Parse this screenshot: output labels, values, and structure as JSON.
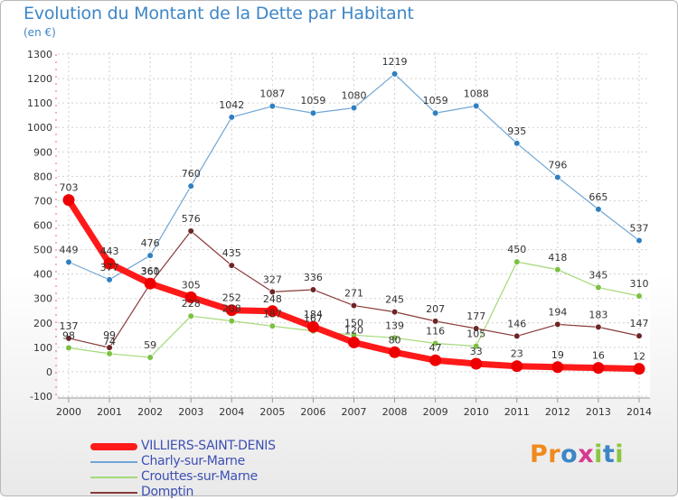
{
  "title": "Evolution du Montant de la Dette par Habitant",
  "subtitle": "(en €)",
  "logo": {
    "letters": [
      "P",
      "r",
      "o",
      "x",
      "i",
      "t",
      "i"
    ],
    "colors": [
      "#f08a1e",
      "#f08a1e",
      "#3d86c6",
      "#d63a8f",
      "#8cc63f",
      "#3d86c6",
      "#8cc63f"
    ]
  },
  "chart_data": {
    "type": "line",
    "title": "Evolution du Montant de la Dette par Habitant",
    "ylabel": "(en €)",
    "xlabel": "",
    "ylim": [
      -100,
      1300
    ],
    "yticks": [
      "-100",
      "0",
      "100",
      "200",
      "300",
      "400",
      "500",
      "600",
      "700",
      "800",
      "900",
      "1000",
      "1100",
      "1200",
      "1300"
    ],
    "ytick_values": [
      -100,
      0,
      100,
      200,
      300,
      400,
      500,
      600,
      700,
      800,
      900,
      1000,
      1100,
      1200,
      1300
    ],
    "categories": [
      "2000",
      "2001",
      "2002",
      "2003",
      "2004",
      "2005",
      "2006",
      "2007",
      "2008",
      "2009",
      "2010",
      "2011",
      "2012",
      "2013",
      "2014"
    ],
    "series": [
      {
        "name": "Charly-sur-Marne",
        "color": "#6fa6d6",
        "point": "#2f7fc1",
        "width": 1.2,
        "values": [
          449,
          377,
          476,
          760,
          1042,
          1087,
          1059,
          1080,
          1219,
          1059,
          1088,
          935,
          796,
          665,
          537
        ],
        "labels": [
          "449",
          "377",
          "476",
          "760",
          "1042",
          "1087",
          "1059",
          "1080",
          "1219",
          "1059",
          "1088",
          "935",
          "796",
          "665",
          "537"
        ]
      },
      {
        "name": "Crouttes-sur-Marne",
        "color": "#a3d977",
        "point": "#7cc142",
        "width": 1.2,
        "values": [
          98,
          74,
          59,
          228,
          208,
          187,
          167,
          150,
          139,
          116,
          105,
          450,
          418,
          345,
          310
        ],
        "labels": [
          "98",
          "74",
          "59",
          "228",
          "208",
          "187",
          "167",
          "150",
          "139",
          "116",
          "105",
          "450",
          "418",
          "345",
          "310"
        ]
      },
      {
        "name": "Domptin",
        "color": "#8b3a3a",
        "point": "#6e2525",
        "width": 1.2,
        "values": [
          137,
          99,
          360,
          576,
          435,
          327,
          336,
          271,
          245,
          207,
          177,
          146,
          194,
          183,
          147
        ],
        "labels": [
          "137",
          "99",
          "360",
          "576",
          "435",
          "327",
          "336",
          "271",
          "245",
          "207",
          "177",
          "146",
          "194",
          "183",
          "147"
        ]
      },
      {
        "name": "VILLIERS-SAINT-DENIS",
        "color": "#ff1a1a",
        "point": "#ee0000",
        "width": 7,
        "values": [
          703,
          443,
          361,
          305,
          252,
          248,
          184,
          120,
          80,
          47,
          33,
          23,
          19,
          16,
          12
        ],
        "labels": [
          "703",
          "443",
          "361",
          "305",
          "252",
          "248",
          "184",
          "120",
          "80",
          "47",
          "33",
          "23",
          "19",
          "16",
          "12"
        ]
      }
    ],
    "legend": [
      {
        "name": "VILLIERS-SAINT-DENIS",
        "color": "#ff1a1a",
        "thick": true
      },
      {
        "name": "Charly-sur-Marne",
        "color": "#6fa6d6",
        "thick": false
      },
      {
        "name": "Crouttes-sur-Marne",
        "color": "#a3d977",
        "thick": false
      },
      {
        "name": "Domptin",
        "color": "#8b3a3a",
        "thick": false
      }
    ]
  }
}
